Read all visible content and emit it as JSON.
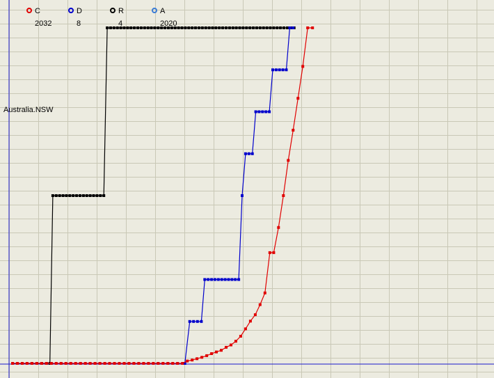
{
  "chart_data": {
    "type": "line",
    "title": "",
    "xlabel": "",
    "ylabel": "",
    "region_label": "Australia.NSW",
    "grid": true,
    "legend": [
      {
        "key": "C",
        "value": "2032",
        "color": "#e00000"
      },
      {
        "key": "D",
        "value": "8",
        "color": "#0000cc"
      },
      {
        "key": "R",
        "value": "4",
        "color": "#000000"
      },
      {
        "key": "A",
        "value": "2020",
        "color": "#3a7bd5"
      }
    ],
    "xlim": [
      0,
      70
    ],
    "ylim": [
      0,
      100
    ],
    "series": [
      {
        "name": "R",
        "color": "#000000",
        "points": [
          [
            0,
            0
          ],
          [
            4,
            0
          ],
          [
            5,
            0
          ],
          [
            6,
            0
          ],
          [
            7,
            0
          ],
          [
            7.7,
            0
          ],
          [
            8.3,
            50
          ],
          [
            9,
            50
          ],
          [
            9.7,
            50
          ],
          [
            10.4,
            50
          ],
          [
            11.1,
            50
          ],
          [
            11.8,
            50
          ],
          [
            12.5,
            50
          ],
          [
            13.2,
            50
          ],
          [
            13.9,
            50
          ],
          [
            14.6,
            50
          ],
          [
            15.3,
            50
          ],
          [
            16,
            50
          ],
          [
            16.7,
            50
          ],
          [
            17.4,
            50
          ],
          [
            18.1,
            50
          ],
          [
            18.8,
            50
          ],
          [
            19.5,
            100
          ],
          [
            20.2,
            100
          ],
          [
            20.9,
            100
          ],
          [
            21.6,
            100
          ],
          [
            22.3,
            100
          ],
          [
            23,
            100
          ],
          [
            23.7,
            100
          ],
          [
            24.4,
            100
          ],
          [
            25.1,
            100
          ],
          [
            25.8,
            100
          ],
          [
            26.5,
            100
          ],
          [
            27.2,
            100
          ],
          [
            27.9,
            100
          ],
          [
            28.6,
            100
          ],
          [
            29.3,
            100
          ],
          [
            30,
            100
          ],
          [
            30.7,
            100
          ],
          [
            31.4,
            100
          ],
          [
            32.1,
            100
          ],
          [
            32.8,
            100
          ],
          [
            33.5,
            100
          ],
          [
            34.2,
            100
          ],
          [
            34.9,
            100
          ],
          [
            35.6,
            100
          ],
          [
            36.3,
            100
          ],
          [
            37,
            100
          ],
          [
            37.7,
            100
          ],
          [
            38.4,
            100
          ],
          [
            39.1,
            100
          ],
          [
            39.8,
            100
          ],
          [
            40.5,
            100
          ],
          [
            41.2,
            100
          ],
          [
            41.9,
            100
          ],
          [
            42.6,
            100
          ],
          [
            43.3,
            100
          ],
          [
            44,
            100
          ],
          [
            44.7,
            100
          ],
          [
            45.4,
            100
          ],
          [
            46.1,
            100
          ],
          [
            46.8,
            100
          ],
          [
            47.5,
            100
          ],
          [
            48.2,
            100
          ],
          [
            48.9,
            100
          ],
          [
            49.6,
            100
          ],
          [
            50.3,
            100
          ],
          [
            51,
            100
          ],
          [
            51.7,
            100
          ],
          [
            52.4,
            100
          ],
          [
            53.1,
            100
          ],
          [
            53.8,
            100
          ],
          [
            54.5,
            100
          ],
          [
            55.2,
            100
          ],
          [
            55.9,
            100
          ],
          [
            56.6,
            100
          ],
          [
            57.3,
            100
          ],
          [
            58,
            100
          ]
        ]
      },
      {
        "name": "D",
        "color": "#0000cc",
        "points": [
          [
            0,
            0
          ],
          [
            2,
            0
          ],
          [
            4,
            0
          ],
          [
            6,
            0
          ],
          [
            8,
            0
          ],
          [
            10,
            0
          ],
          [
            12,
            0
          ],
          [
            14,
            0
          ],
          [
            16,
            0
          ],
          [
            18,
            0
          ],
          [
            20,
            0
          ],
          [
            22,
            0
          ],
          [
            24,
            0
          ],
          [
            26,
            0
          ],
          [
            28,
            0
          ],
          [
            30,
            0
          ],
          [
            32,
            0
          ],
          [
            34,
            0
          ],
          [
            35.5,
            0
          ],
          [
            36.5,
            12.5
          ],
          [
            37.3,
            12.5
          ],
          [
            38.1,
            12.5
          ],
          [
            38.9,
            12.5
          ],
          [
            39.6,
            25
          ],
          [
            40.3,
            25
          ],
          [
            41,
            25
          ],
          [
            41.7,
            25
          ],
          [
            42.4,
            25
          ],
          [
            43.1,
            25
          ],
          [
            43.8,
            25
          ],
          [
            44.5,
            25
          ],
          [
            45.2,
            25
          ],
          [
            45.9,
            25
          ],
          [
            46.6,
            25
          ],
          [
            47.3,
            50
          ],
          [
            48,
            62.5
          ],
          [
            48.7,
            62.5
          ],
          [
            49.4,
            62.5
          ],
          [
            50.1,
            75
          ],
          [
            50.8,
            75
          ],
          [
            51.5,
            75
          ],
          [
            52.2,
            75
          ],
          [
            52.9,
            75
          ],
          [
            53.6,
            87.5
          ],
          [
            54.3,
            87.5
          ],
          [
            55,
            87.5
          ],
          [
            55.7,
            87.5
          ],
          [
            56.4,
            87.5
          ],
          [
            57.1,
            100
          ],
          [
            57.8,
            100
          ]
        ]
      },
      {
        "name": "C",
        "color": "#e00000",
        "points": [
          [
            0,
            0
          ],
          [
            1,
            0
          ],
          [
            2,
            0
          ],
          [
            3,
            0
          ],
          [
            4,
            0
          ],
          [
            5,
            0
          ],
          [
            6,
            0
          ],
          [
            7,
            0
          ],
          [
            8,
            0
          ],
          [
            9,
            0
          ],
          [
            10,
            0
          ],
          [
            11,
            0
          ],
          [
            12,
            0
          ],
          [
            13,
            0
          ],
          [
            14,
            0
          ],
          [
            15,
            0
          ],
          [
            16,
            0
          ],
          [
            17,
            0
          ],
          [
            18,
            0
          ],
          [
            19,
            0
          ],
          [
            20,
            0
          ],
          [
            21,
            0
          ],
          [
            22,
            0
          ],
          [
            23,
            0
          ],
          [
            24,
            0
          ],
          [
            25,
            0
          ],
          [
            26,
            0
          ],
          [
            27,
            0
          ],
          [
            28,
            0
          ],
          [
            29,
            0
          ],
          [
            30,
            0
          ],
          [
            31,
            0
          ],
          [
            32,
            0
          ],
          [
            33,
            0
          ],
          [
            34,
            0
          ],
          [
            35,
            0
          ],
          [
            36,
            0.7
          ],
          [
            37,
            1.0
          ],
          [
            38,
            1.4
          ],
          [
            39,
            1.8
          ],
          [
            40,
            2.3
          ],
          [
            41,
            2.9
          ],
          [
            42,
            3.4
          ],
          [
            43,
            3.9
          ],
          [
            44,
            4.8
          ],
          [
            45,
            5.5
          ],
          [
            46,
            6.6
          ],
          [
            47,
            8.1
          ],
          [
            48,
            10.3
          ],
          [
            49,
            12.6
          ],
          [
            50,
            14.5
          ],
          [
            51,
            17.5
          ],
          [
            52,
            21
          ],
          [
            53,
            33
          ],
          [
            53.8,
            33
          ],
          [
            54.8,
            40.5
          ],
          [
            55.8,
            50
          ],
          [
            56.8,
            60.5
          ],
          [
            57.8,
            69.5
          ],
          [
            58.8,
            79
          ],
          [
            59.8,
            88.5
          ],
          [
            60.8,
            100
          ],
          [
            61.8,
            100
          ]
        ]
      }
    ]
  }
}
